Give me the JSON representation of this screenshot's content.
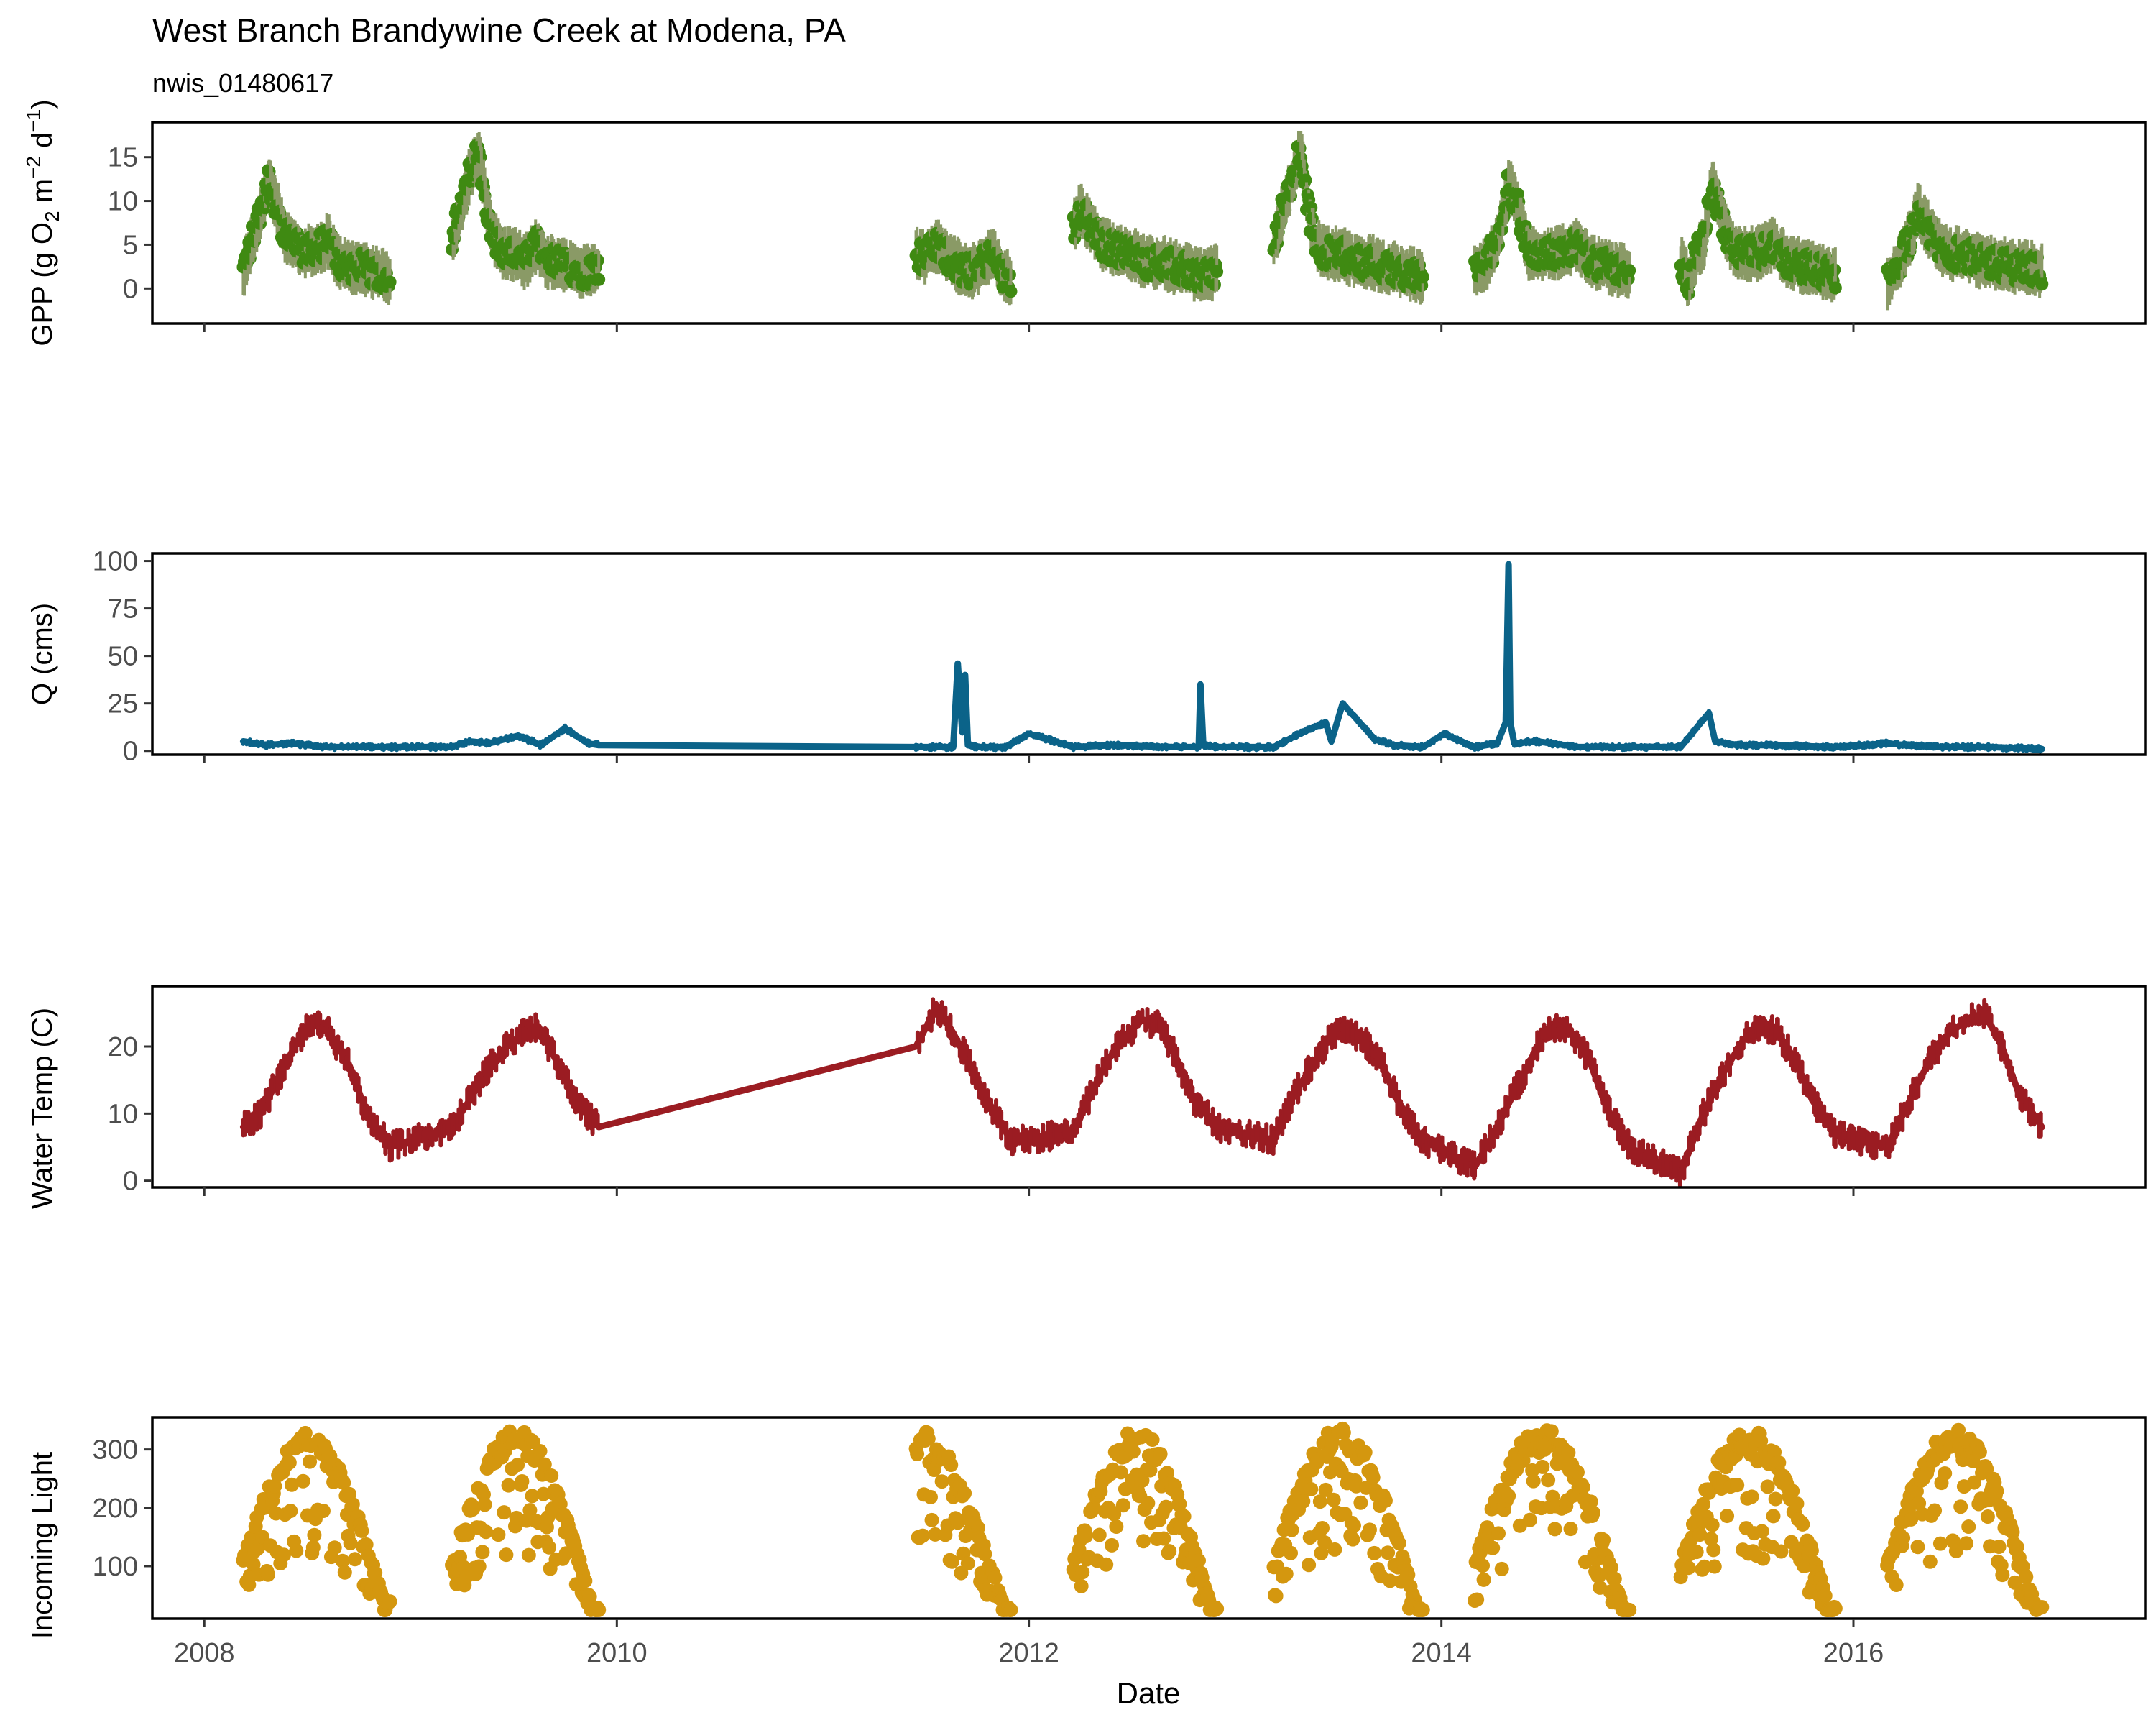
{
  "title": "West Branch Brandywine Creek at Modena, PA",
  "subtitle": "nwis_01480617",
  "xlabel": "Date",
  "x_ticks": [
    "2008",
    "2010",
    "2012",
    "2014",
    "2016"
  ],
  "x_range": [
    "2007-10-01",
    "2017-06-01"
  ],
  "chart_data": [
    {
      "type": "scatter",
      "ylabel": "GPP (g O₂ m⁻² d⁻¹)",
      "ylabel_parts": {
        "a": "GPP (g  O",
        "b": "2",
        "c": " m",
        "d": "−2",
        "e": " d",
        "f": "−1",
        "g": ")"
      },
      "ylim": [
        -4,
        19
      ],
      "yticks": [
        0,
        5,
        10,
        15
      ],
      "ytick_labels": [
        "0",
        "5",
        "10",
        "15"
      ],
      "color": "#3f8a12",
      "band_color": "#8a9a66",
      "seasons": [
        {
          "start": "2008-03-10",
          "end": "2008-11-25",
          "points": [
            [
              0.0,
              2
            ],
            [
              0.05,
              5
            ],
            [
              0.12,
              9
            ],
            [
              0.17,
              12.5
            ],
            [
              0.22,
              10
            ],
            [
              0.28,
              6
            ],
            [
              0.35,
              5
            ],
            [
              0.42,
              4
            ],
            [
              0.5,
              4.5
            ],
            [
              0.58,
              5.5
            ],
            [
              0.65,
              3
            ],
            [
              0.72,
              2.5
            ],
            [
              0.8,
              2.5
            ],
            [
              0.88,
              2
            ],
            [
              0.95,
              1.5
            ],
            [
              1.0,
              1
            ]
          ]
        },
        {
          "start": "2009-03-15",
          "end": "2009-11-30",
          "points": [
            [
              0.0,
              6
            ],
            [
              0.06,
              9
            ],
            [
              0.12,
              13
            ],
            [
              0.18,
              15.5
            ],
            [
              0.22,
              11
            ],
            [
              0.28,
              6
            ],
            [
              0.35,
              4
            ],
            [
              0.42,
              4
            ],
            [
              0.5,
              3
            ],
            [
              0.58,
              5
            ],
            [
              0.65,
              3
            ],
            [
              0.72,
              3
            ],
            [
              0.8,
              2.5
            ],
            [
              0.88,
              2
            ],
            [
              0.95,
              2
            ],
            [
              1.0,
              2.5
            ]
          ]
        },
        {
          "start": "2011-06-15",
          "end": "2011-11-30",
          "points": [
            [
              0.0,
              4
            ],
            [
              0.1,
              3.5
            ],
            [
              0.2,
              5
            ],
            [
              0.3,
              4
            ],
            [
              0.4,
              3
            ],
            [
              0.5,
              2
            ],
            [
              0.6,
              2
            ],
            [
              0.7,
              3
            ],
            [
              0.8,
              4
            ],
            [
              0.9,
              2
            ],
            [
              1.0,
              1
            ]
          ]
        },
        {
          "start": "2012-03-20",
          "end": "2012-11-30",
          "points": [
            [
              0.0,
              7
            ],
            [
              0.05,
              9
            ],
            [
              0.12,
              7
            ],
            [
              0.2,
              5
            ],
            [
              0.3,
              4.5
            ],
            [
              0.4,
              4
            ],
            [
              0.5,
              3
            ],
            [
              0.6,
              3
            ],
            [
              0.7,
              2.5
            ],
            [
              0.8,
              2
            ],
            [
              0.9,
              1.5
            ],
            [
              1.0,
              2
            ]
          ]
        },
        {
          "start": "2013-03-10",
          "end": "2013-11-30",
          "points": [
            [
              0.0,
              5
            ],
            [
              0.06,
              9
            ],
            [
              0.12,
              12
            ],
            [
              0.18,
              16
            ],
            [
              0.22,
              10
            ],
            [
              0.28,
              5
            ],
            [
              0.35,
              4
            ],
            [
              0.45,
              4
            ],
            [
              0.55,
              3
            ],
            [
              0.65,
              3
            ],
            [
              0.75,
              2.5
            ],
            [
              0.85,
              2
            ],
            [
              0.95,
              1.5
            ],
            [
              1.0,
              1
            ]
          ]
        },
        {
          "start": "2014-03-01",
          "end": "2014-11-30",
          "points": [
            [
              0.0,
              2
            ],
            [
              0.08,
              3
            ],
            [
              0.15,
              6
            ],
            [
              0.22,
              12
            ],
            [
              0.28,
              9
            ],
            [
              0.35,
              4
            ],
            [
              0.45,
              4
            ],
            [
              0.55,
              4
            ],
            [
              0.65,
              5
            ],
            [
              0.75,
              3
            ],
            [
              0.85,
              2.5
            ],
            [
              0.95,
              2
            ],
            [
              1.0,
              2
            ]
          ]
        },
        {
          "start": "2015-03-01",
          "end": "2015-11-30",
          "points": [
            [
              0.0,
              3
            ],
            [
              0.05,
              1
            ],
            [
              0.1,
              4
            ],
            [
              0.15,
              5
            ],
            [
              0.2,
              12
            ],
            [
              0.26,
              8
            ],
            [
              0.32,
              5
            ],
            [
              0.4,
              4
            ],
            [
              0.5,
              4
            ],
            [
              0.6,
              5
            ],
            [
              0.7,
              3
            ],
            [
              0.8,
              2.5
            ],
            [
              0.9,
              2
            ],
            [
              1.0,
              1.5
            ]
          ]
        },
        {
          "start": "2016-03-01",
          "end": "2016-11-30",
          "points": [
            [
              0.0,
              0.5
            ],
            [
              0.08,
              3
            ],
            [
              0.15,
              6
            ],
            [
              0.2,
              9
            ],
            [
              0.26,
              7
            ],
            [
              0.32,
              5
            ],
            [
              0.4,
              4
            ],
            [
              0.5,
              4
            ],
            [
              0.6,
              3
            ],
            [
              0.7,
              3
            ],
            [
              0.8,
              2.5
            ],
            [
              0.9,
              2.5
            ],
            [
              1.0,
              2
            ]
          ]
        }
      ]
    },
    {
      "type": "line",
      "ylabel": "Q (cms)",
      "ylim": [
        -2,
        104
      ],
      "yticks": [
        0,
        25,
        50,
        75,
        100
      ],
      "ytick_labels": [
        "0",
        "25",
        "50",
        "75",
        "100"
      ],
      "color": "#0b6389",
      "x": [
        "2008-03-10",
        "2008-04-20",
        "2008-06-01",
        "2008-08-01",
        "2008-11-25",
        "2009-03-15",
        "2009-04-15",
        "2009-05-20",
        "2009-07-10",
        "2009-08-20",
        "2009-10-01",
        "2009-11-10",
        "2009-11-30",
        "2011-06-15",
        "2011-08-20",
        "2011-08-28",
        "2011-09-05",
        "2011-09-10",
        "2011-09-15",
        "2011-10-01",
        "2011-11-20",
        "2012-01-01",
        "2012-03-20",
        "2012-06-01",
        "2012-09-01",
        "2012-10-28",
        "2012-10-31",
        "2012-11-05",
        "2012-11-30",
        "2013-03-10",
        "2013-05-01",
        "2013-06-10",
        "2013-06-20",
        "2013-07-10",
        "2013-09-05",
        "2013-10-10",
        "2013-11-30",
        "2014-01-05",
        "2014-03-01",
        "2014-04-10",
        "2014-04-25",
        "2014-04-30",
        "2014-05-03",
        "2014-05-10",
        "2014-06-20",
        "2014-09-01",
        "2014-11-30",
        "2015-03-01",
        "2015-04-20",
        "2015-05-01",
        "2015-06-10",
        "2015-08-01",
        "2015-11-30",
        "2016-03-01",
        "2016-04-01",
        "2016-06-01",
        "2016-09-01",
        "2016-11-30"
      ],
      "y": [
        5,
        3,
        4,
        2,
        2,
        2,
        5,
        4,
        8,
        3,
        12,
        4,
        3,
        2,
        2,
        46,
        10,
        40,
        3,
        2,
        2,
        9,
        2,
        3,
        2,
        2,
        35,
        3,
        2,
        2,
        10,
        15,
        5,
        25,
        6,
        3,
        2,
        9,
        2,
        4,
        15,
        98,
        15,
        4,
        5,
        2,
        2,
        2,
        20,
        5,
        3,
        3,
        2,
        4,
        3,
        2,
        2,
        1
      ]
    },
    {
      "type": "line",
      "ylabel": "Water Temp (C)",
      "ylim": [
        -1,
        29
      ],
      "yticks": [
        0,
        10,
        20
      ],
      "ytick_labels": [
        "0",
        "10",
        "20"
      ],
      "color": "#9b1c22",
      "x": [
        "2008-03-10",
        "2008-04-10",
        "2008-05-10",
        "2008-06-15",
        "2008-07-15",
        "2008-08-10",
        "2008-09-15",
        "2008-10-15",
        "2008-11-25",
        "2009-03-15",
        "2009-04-15",
        "2009-05-20",
        "2009-06-20",
        "2009-07-20",
        "2009-08-15",
        "2009-09-15",
        "2009-10-20",
        "2009-11-30",
        "2011-06-15",
        "2011-07-22",
        "2011-08-20",
        "2011-09-20",
        "2011-10-20",
        "2011-11-30",
        "2012-03-20",
        "2012-04-20",
        "2012-05-20",
        "2012-06-25",
        "2012-07-20",
        "2012-08-20",
        "2012-09-20",
        "2012-10-20",
        "2012-11-30",
        "2013-03-10",
        "2013-04-10",
        "2013-05-15",
        "2013-06-15",
        "2013-07-10",
        "2013-08-15",
        "2013-09-15",
        "2013-10-15",
        "2013-11-30",
        "2014-03-01",
        "2014-04-10",
        "2014-05-15",
        "2014-06-20",
        "2014-07-15",
        "2014-08-20",
        "2014-09-20",
        "2014-10-20",
        "2014-11-30",
        "2015-03-01",
        "2015-04-10",
        "2015-05-15",
        "2015-06-20",
        "2015-07-20",
        "2015-08-20",
        "2015-09-20",
        "2015-10-20",
        "2015-11-30",
        "2016-03-01",
        "2016-04-10",
        "2016-05-15",
        "2016-06-20",
        "2016-07-20",
        "2016-08-20",
        "2016-09-20",
        "2016-10-20",
        "2016-11-30"
      ],
      "y": [
        8,
        10,
        15,
        21,
        24,
        22,
        17,
        10,
        5,
        8,
        12,
        17,
        20,
        22,
        23,
        18,
        12,
        8,
        20,
        26,
        22,
        17,
        12,
        6,
        7,
        13,
        18,
        22,
        24,
        23,
        18,
        12,
        8,
        6,
        12,
        17,
        21,
        23,
        21,
        18,
        12,
        6,
        2,
        8,
        14,
        20,
        23,
        22,
        18,
        11,
        5,
        1,
        10,
        16,
        21,
        23,
        22,
        18,
        12,
        7,
        5,
        12,
        18,
        22,
        24,
        25,
        20,
        13,
        8
      ]
    },
    {
      "type": "scatter",
      "ylabel": "Incoming Light",
      "ylim": [
        10,
        355
      ],
      "yticks": [
        100,
        200,
        300
      ],
      "ytick_labels": [
        "100",
        "200",
        "300"
      ],
      "color": "#d4970f",
      "seasons": [
        {
          "start": "2008-03-10",
          "end": "2008-11-25",
          "max": 330,
          "min": 40
        },
        {
          "start": "2009-03-15",
          "end": "2009-11-30",
          "max": 335,
          "min": 30
        },
        {
          "start": "2011-06-15",
          "end": "2011-11-30",
          "max": 335,
          "min": 30,
          "phase_start": 0.42
        },
        {
          "start": "2012-03-20",
          "end": "2012-11-30",
          "max": 335,
          "min": 30
        },
        {
          "start": "2013-03-10",
          "end": "2013-11-30",
          "max": 338,
          "min": 30
        },
        {
          "start": "2014-03-01",
          "end": "2014-11-30",
          "max": 340,
          "min": 30
        },
        {
          "start": "2015-03-01",
          "end": "2015-11-30",
          "max": 335,
          "min": 30
        },
        {
          "start": "2016-03-01",
          "end": "2016-11-30",
          "max": 335,
          "min": 30
        }
      ]
    }
  ]
}
